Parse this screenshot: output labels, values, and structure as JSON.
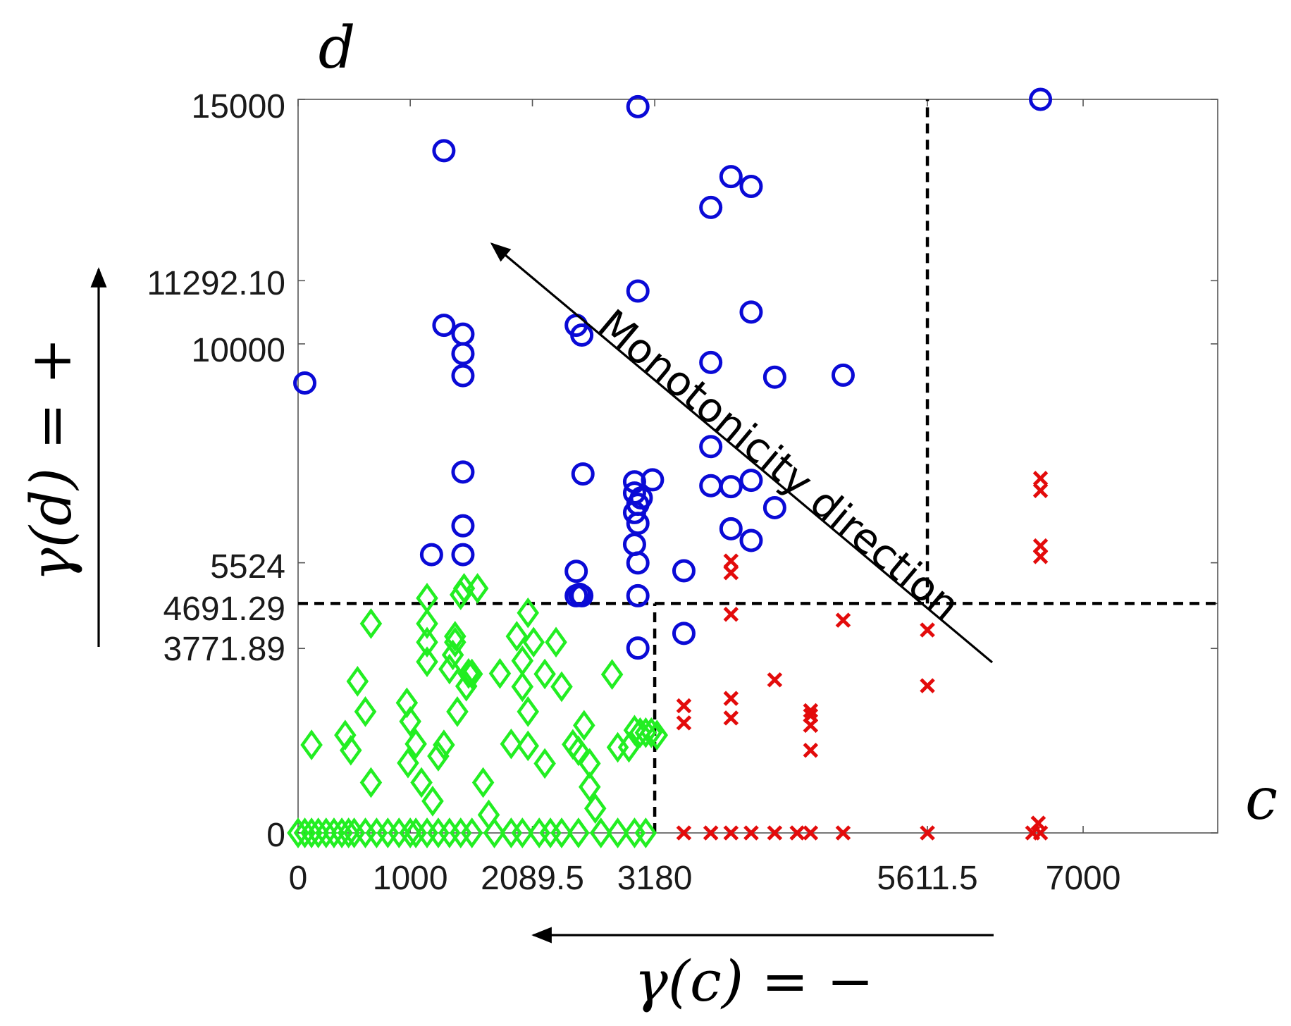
{
  "chart_data": {
    "type": "scatter",
    "title": "",
    "xlabel": "c",
    "ylabel": "d",
    "xlim": [
      0,
      8200
    ],
    "ylim": [
      0,
      15000
    ],
    "x_ticks": [
      {
        "value": 0,
        "label": "0"
      },
      {
        "value": 1000,
        "label": "1000"
      },
      {
        "value": 2089.5,
        "label": "2089.5"
      },
      {
        "value": 3180,
        "label": "3180"
      },
      {
        "value": 5611.5,
        "label": "5611.5"
      },
      {
        "value": 7000,
        "label": "7000"
      }
    ],
    "y_ticks": [
      {
        "value": 0,
        "label": "0"
      },
      {
        "value": 3771.89,
        "label": "3771.89"
      },
      {
        "value": 4691.29,
        "label": "4691.29"
      },
      {
        "value": 5524,
        "label": "5524"
      },
      {
        "value": 10000,
        "label": "10000"
      },
      {
        "value": 11292.1,
        "label": "11292.10"
      },
      {
        "value": 15000,
        "label": "15000"
      }
    ],
    "threshold_lines": [
      {
        "orientation": "horizontal",
        "y": 4691.29,
        "x_from": 0,
        "x_to": 8200
      },
      {
        "orientation": "vertical",
        "x": 3180,
        "y_from": 0,
        "y_to": 4691.29
      },
      {
        "orientation": "vertical",
        "x": 5611.5,
        "y_from": 4691.29,
        "y_to": 15000
      }
    ],
    "annotations": {
      "monotonicity": "Monotonicity direction",
      "gamma_c": "γ(c) = −",
      "gamma_d": "γ(d) = +"
    },
    "colors": {
      "blue": "#0a0ad6",
      "red": "#e30b0b",
      "green": "#22ee22",
      "line": "#000000"
    },
    "series": [
      {
        "name": "blue",
        "marker": "circle",
        "points": [
          [
            60,
            9200
          ],
          [
            1300,
            13950
          ],
          [
            1300,
            10380
          ],
          [
            1470,
            10200
          ],
          [
            1470,
            9800
          ],
          [
            1470,
            9350
          ],
          [
            1470,
            7380
          ],
          [
            1470,
            6280
          ],
          [
            1470,
            5690
          ],
          [
            1190,
            5690
          ],
          [
            2480,
            10380
          ],
          [
            2530,
            10180
          ],
          [
            2540,
            7340
          ],
          [
            2480,
            5350
          ],
          [
            2510,
            4880
          ],
          [
            2480,
            4850
          ],
          [
            2530,
            4850
          ],
          [
            3030,
            14850
          ],
          [
            3030,
            11080
          ],
          [
            3000,
            7180
          ],
          [
            3000,
            6950
          ],
          [
            3060,
            6850
          ],
          [
            3030,
            6720
          ],
          [
            3000,
            6550
          ],
          [
            3030,
            6330
          ],
          [
            3000,
            5900
          ],
          [
            3030,
            5520
          ],
          [
            3030,
            4850
          ],
          [
            3030,
            3780
          ],
          [
            3160,
            7220
          ],
          [
            3440,
            5360
          ],
          [
            3440,
            4080
          ],
          [
            3680,
            12790
          ],
          [
            3680,
            9620
          ],
          [
            3680,
            7900
          ],
          [
            3680,
            7100
          ],
          [
            3860,
            13420
          ],
          [
            3860,
            7080
          ],
          [
            3860,
            6220
          ],
          [
            4040,
            13220
          ],
          [
            4040,
            10650
          ],
          [
            4040,
            7210
          ],
          [
            4040,
            5980
          ],
          [
            4250,
            9320
          ],
          [
            4250,
            6650
          ],
          [
            4860,
            9360
          ],
          [
            6620,
            15000
          ]
        ]
      },
      {
        "name": "red",
        "marker": "x",
        "points": [
          [
            3440,
            0
          ],
          [
            3680,
            0
          ],
          [
            3860,
            0
          ],
          [
            4040,
            0
          ],
          [
            4250,
            0
          ],
          [
            4450,
            0
          ],
          [
            4570,
            0
          ],
          [
            4860,
            0
          ],
          [
            5611.5,
            0
          ],
          [
            6550,
            0
          ],
          [
            6620,
            0
          ],
          [
            6600,
            200
          ],
          [
            3440,
            2600
          ],
          [
            3440,
            2250
          ],
          [
            3860,
            2750
          ],
          [
            3860,
            2350
          ],
          [
            4250,
            3130
          ],
          [
            4570,
            2200
          ],
          [
            4570,
            2400
          ],
          [
            4570,
            2500
          ],
          [
            4570,
            1690
          ],
          [
            3860,
            4470
          ],
          [
            3860,
            5320
          ],
          [
            3860,
            5560
          ],
          [
            4860,
            4350
          ],
          [
            5611.5,
            4150
          ],
          [
            5611.5,
            3010
          ],
          [
            6620,
            5650
          ],
          [
            6620,
            5870
          ],
          [
            6620,
            7000
          ],
          [
            6620,
            7250
          ]
        ]
      },
      {
        "name": "green",
        "marker": "diamond",
        "points": [
          [
            0,
            0
          ],
          [
            60,
            0
          ],
          [
            120,
            0
          ],
          [
            180,
            0
          ],
          [
            250,
            0
          ],
          [
            320,
            0
          ],
          [
            390,
            0
          ],
          [
            450,
            0
          ],
          [
            500,
            0
          ],
          [
            600,
            0
          ],
          [
            700,
            0
          ],
          [
            800,
            0
          ],
          [
            900,
            0
          ],
          [
            1000,
            0
          ],
          [
            1050,
            0
          ],
          [
            1150,
            0
          ],
          [
            1250,
            0
          ],
          [
            1350,
            0
          ],
          [
            1450,
            0
          ],
          [
            1550,
            0
          ],
          [
            1750,
            0
          ],
          [
            1900,
            0
          ],
          [
            2000,
            0
          ],
          [
            2150,
            0
          ],
          [
            2250,
            0
          ],
          [
            2350,
            0
          ],
          [
            2500,
            0
          ],
          [
            2700,
            0
          ],
          [
            2850,
            0
          ],
          [
            3000,
            0
          ],
          [
            3100,
            0
          ],
          [
            120,
            1800
          ],
          [
            420,
            2000
          ],
          [
            470,
            1690
          ],
          [
            600,
            2480
          ],
          [
            530,
            3100
          ],
          [
            650,
            1030
          ],
          [
            650,
            4280
          ],
          [
            970,
            2660
          ],
          [
            980,
            1430
          ],
          [
            1000,
            2280
          ],
          [
            1050,
            1820
          ],
          [
            1100,
            1030
          ],
          [
            1150,
            4800
          ],
          [
            1150,
            4280
          ],
          [
            1150,
            3900
          ],
          [
            1150,
            3500
          ],
          [
            1200,
            650
          ],
          [
            1250,
            1570
          ],
          [
            1300,
            1800
          ],
          [
            1350,
            3350
          ],
          [
            1380,
            3640
          ],
          [
            1400,
            3900
          ],
          [
            1400,
            4020
          ],
          [
            1420,
            2480
          ],
          [
            1450,
            4870
          ],
          [
            1480,
            5000
          ],
          [
            1500,
            3000
          ],
          [
            1520,
            3260
          ],
          [
            1550,
            3250
          ],
          [
            1600,
            5000
          ],
          [
            1650,
            1030
          ],
          [
            1700,
            370
          ],
          [
            1800,
            3260
          ],
          [
            1900,
            1820
          ],
          [
            1950,
            4020
          ],
          [
            2000,
            3520
          ],
          [
            2000,
            2990
          ],
          [
            2050,
            2480
          ],
          [
            2050,
            1780
          ],
          [
            2050,
            4500
          ],
          [
            2100,
            3900
          ],
          [
            2200,
            3250
          ],
          [
            2200,
            1420
          ],
          [
            2300,
            3900
          ],
          [
            2350,
            2990
          ],
          [
            2450,
            1810
          ],
          [
            2500,
            1680
          ],
          [
            2550,
            2200
          ],
          [
            2600,
            1420
          ],
          [
            2600,
            940
          ],
          [
            2650,
            500
          ],
          [
            2800,
            3240
          ],
          [
            2850,
            1750
          ],
          [
            2950,
            1750
          ],
          [
            3000,
            2100
          ],
          [
            3050,
            2050
          ],
          [
            3100,
            2050
          ],
          [
            3150,
            2050
          ],
          [
            3200,
            2000
          ]
        ]
      }
    ]
  }
}
